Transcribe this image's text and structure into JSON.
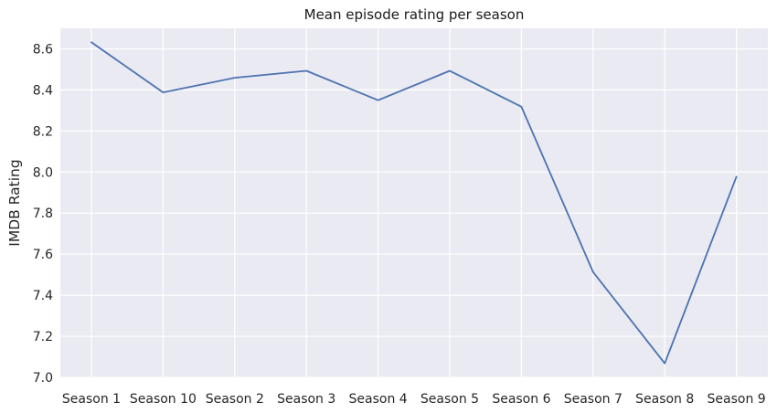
{
  "chart_data": {
    "type": "line",
    "title": "Mean episode rating per season",
    "xlabel": "",
    "ylabel": "IMDB Rating",
    "categories": [
      "Season 1",
      "Season 10",
      "Season 2",
      "Season 3",
      "Season 4",
      "Season 5",
      "Season 6",
      "Season 7",
      "Season 8",
      "Season 9"
    ],
    "series": [
      {
        "name": "",
        "values": [
          8.632,
          8.388,
          8.459,
          8.493,
          8.35,
          8.493,
          8.318,
          7.513,
          7.068,
          7.977
        ]
      }
    ],
    "ylim": [
      7.0,
      8.7
    ],
    "yticks": [
      7.0,
      7.2,
      7.4,
      7.6,
      7.8,
      8.0,
      8.2,
      8.4,
      8.6
    ],
    "grid": true,
    "colors": {
      "background": "#eaeaf2",
      "grid": "#ffffff",
      "line": "#4c72b0"
    }
  }
}
